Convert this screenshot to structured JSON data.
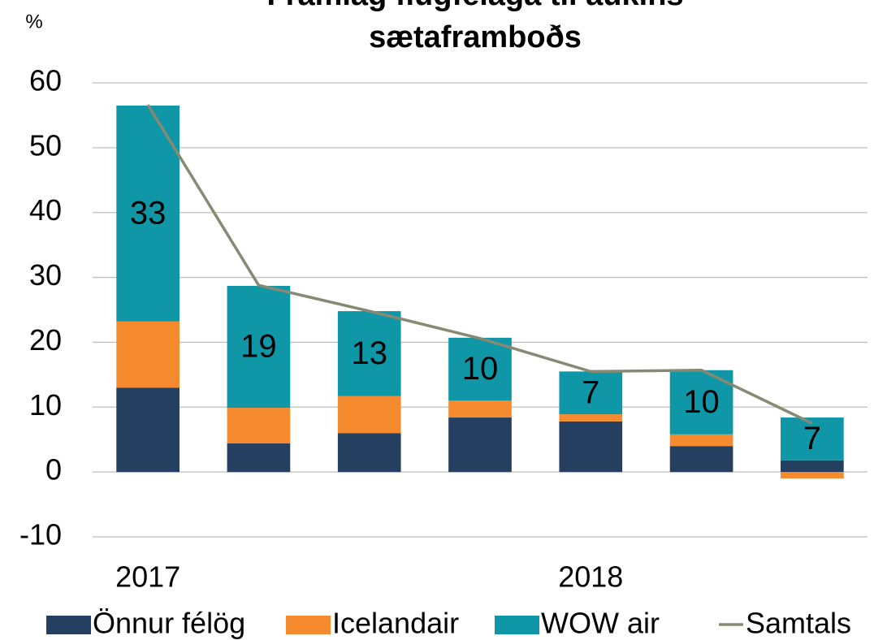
{
  "chart_data": {
    "type": "bar",
    "stacked": true,
    "title": "Framlag flugfélaga til aukins sætaframboðs",
    "y_label": "%",
    "categories": [
      "2017",
      null,
      null,
      null,
      "2018",
      null,
      null
    ],
    "series": [
      {
        "name": "Önnur félög",
        "color": "#243f5f",
        "values": [
          13.0,
          4.4,
          6.0,
          8.4,
          7.8,
          4.0,
          1.8
        ]
      },
      {
        "name": "Icelandair",
        "color": "#f58a2e",
        "values": [
          10.2,
          5.5,
          5.7,
          2.6,
          1.1,
          1.8,
          -1.0
        ]
      },
      {
        "name": "WOW air",
        "color": "#0f97a8",
        "values": [
          33.3,
          18.8,
          13.1,
          9.7,
          6.6,
          9.9,
          6.6
        ],
        "value_labels": [
          "33",
          "19",
          "13",
          "10",
          "7",
          "10",
          "7"
        ]
      },
      {
        "name": "Samtals",
        "color": "#878a73",
        "type": "line",
        "values": [
          56.6,
          28.8,
          24.8,
          20.6,
          15.5,
          15.7,
          7.5
        ]
      }
    ],
    "ylim": [
      -10,
      60
    ],
    "yticks": [
      -10,
      0,
      10,
      20,
      30,
      40,
      50,
      60
    ],
    "grid": true,
    "legend": "bottom"
  }
}
